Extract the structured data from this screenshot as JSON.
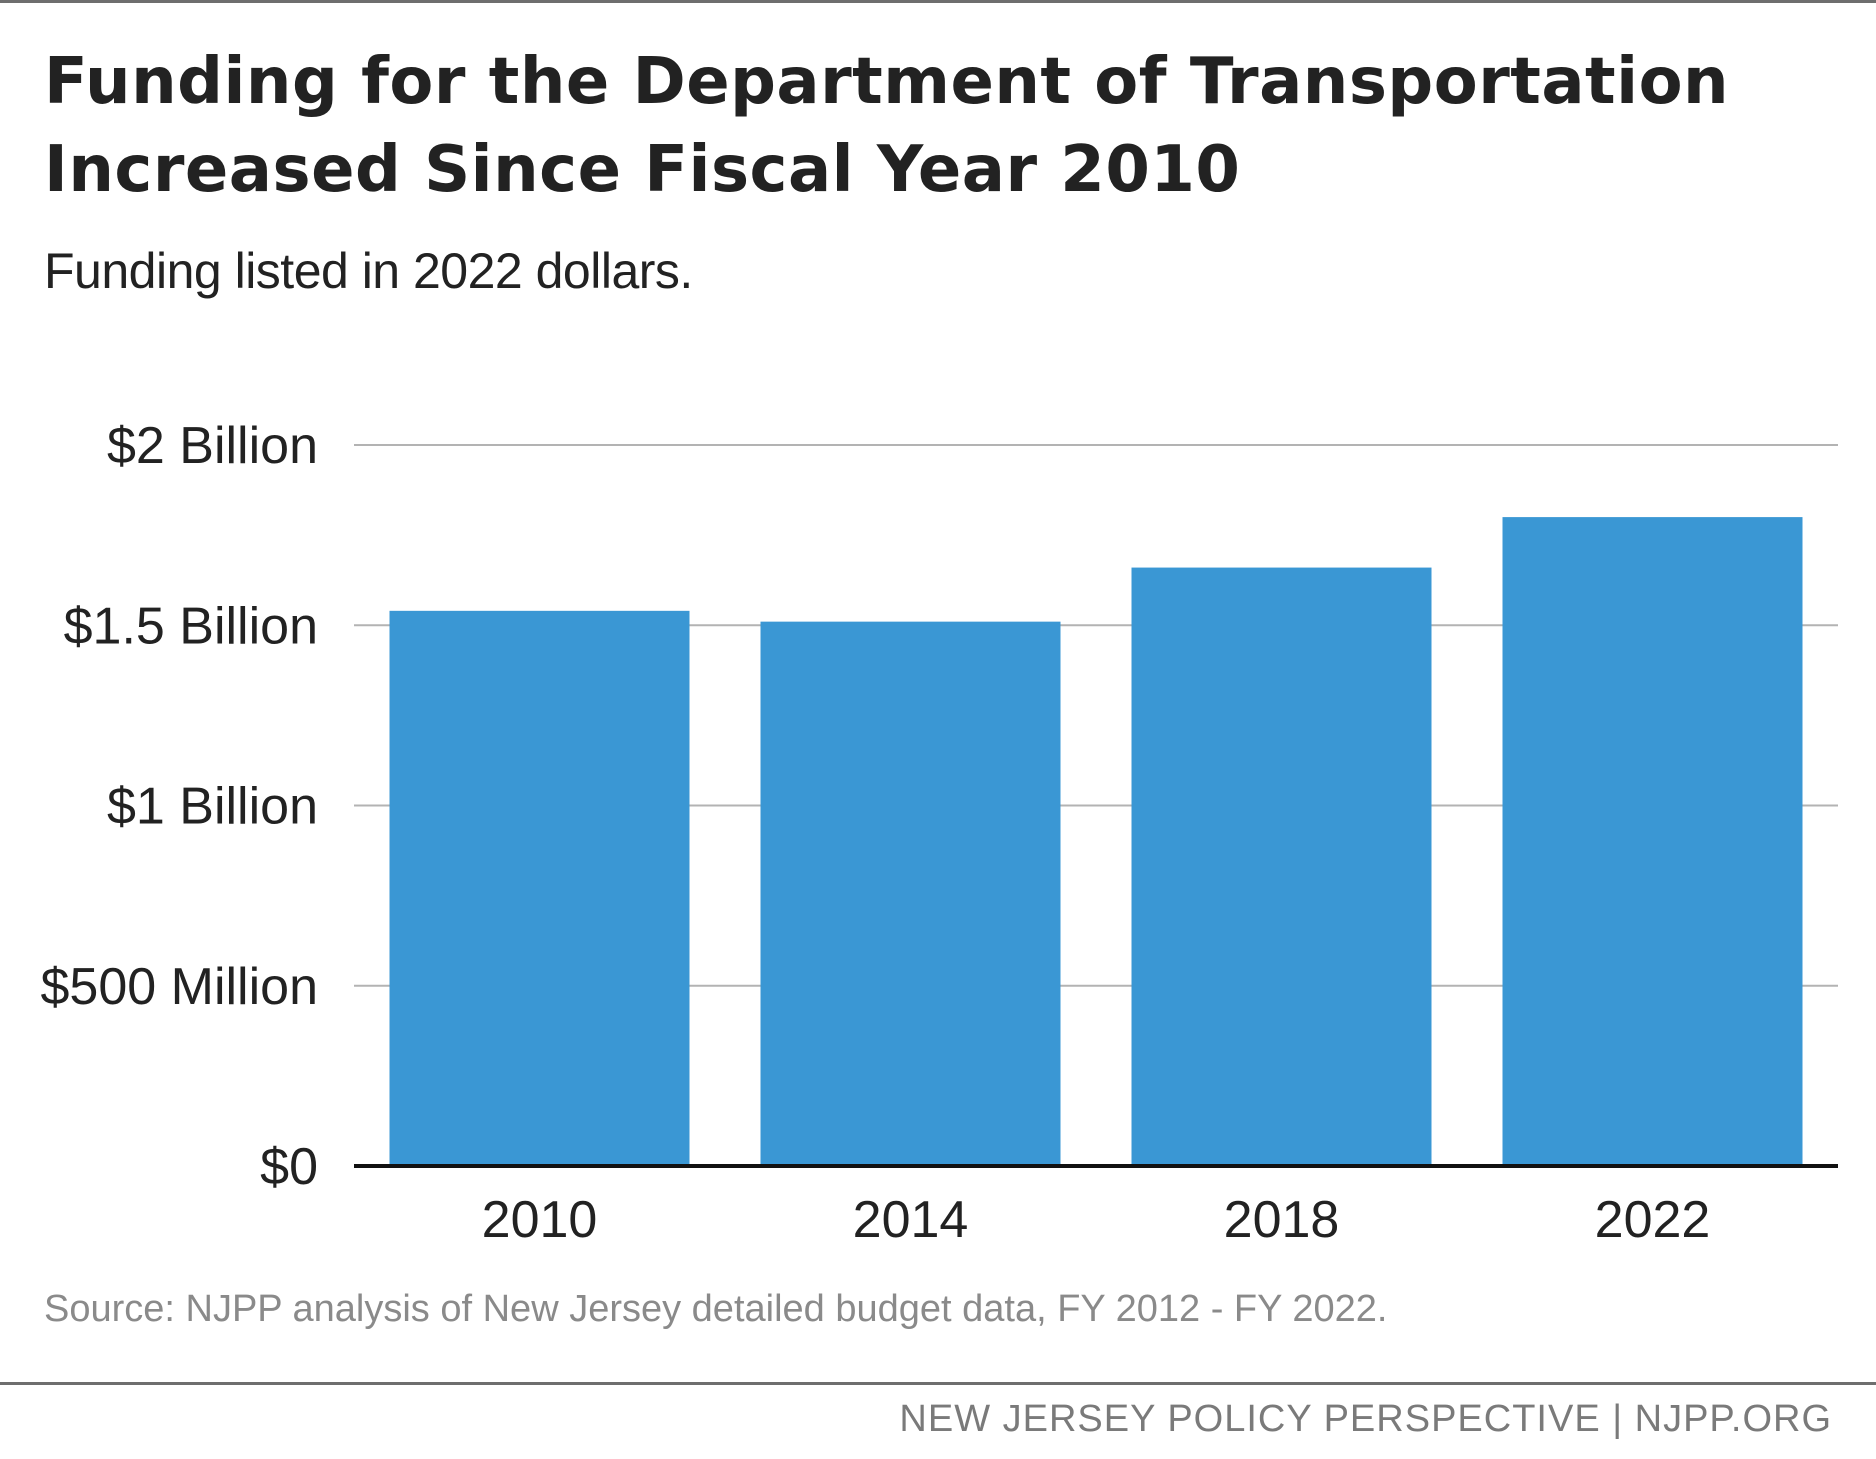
{
  "chart_data": {
    "type": "bar",
    "title": "Funding for the Department of Transportation Increased Since Fiscal Year 2010",
    "subtitle": "Funding listed in 2022 dollars.",
    "categories": [
      "2010",
      "2014",
      "2018",
      "2022"
    ],
    "values": [
      1.54,
      1.51,
      1.66,
      1.8
    ],
    "value_units": "billions of dollars",
    "ylim": [
      0,
      2
    ],
    "yticks": [
      {
        "value": 0,
        "label": "$0"
      },
      {
        "value": 0.5,
        "label": "$500 Million"
      },
      {
        "value": 1,
        "label": "$1 Billion"
      },
      {
        "value": 1.5,
        "label": "$1.5 Billion"
      },
      {
        "value": 2,
        "label": "$2 Billion"
      }
    ],
    "xlabel": "",
    "ylabel": "",
    "grid": true,
    "bar_color": "#3a97d4",
    "source": "Source: NJPP analysis of New Jersey detailed budget data, FY 2012 - FY 2022."
  },
  "footer": "NEW JERSEY POLICY PERSPECTIVE | NJPP.ORG"
}
